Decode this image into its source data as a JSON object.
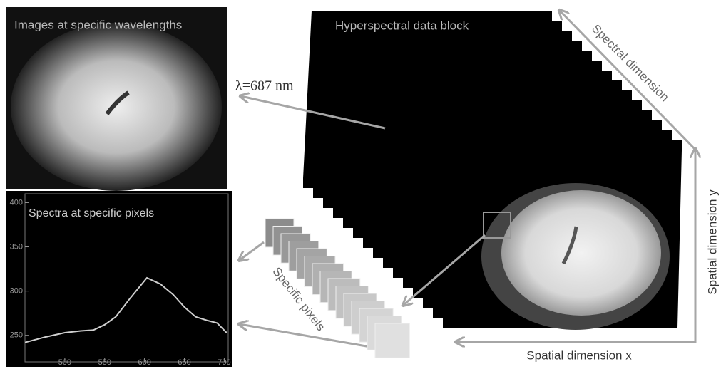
{
  "panels": {
    "image_title": "Images at specific wavelengths",
    "wavelength_label": "λ=687 nm",
    "spectrum_title": "Spectra at specific pixels"
  },
  "data_block": {
    "title": "Hyperspectral data block",
    "spectral_axis": "Spectral dimension",
    "spatial_y_axis": "Spatial dimension y",
    "spatial_x_axis": "Spatial dimension x",
    "pixels_label": "Specific pixels"
  },
  "chart_data": {
    "type": "line",
    "x": [
      450,
      475,
      500,
      520,
      536,
      550,
      564,
      582,
      603,
      620,
      636,
      650,
      664,
      678,
      691,
      703
    ],
    "series": [
      {
        "color": "#cfcfcf",
        "values": [
          242,
          248,
          253,
          255,
          256,
          262,
          271,
          292,
          315,
          308,
          296,
          282,
          271,
          267,
          264,
          253
        ]
      }
    ],
    "xlim": [
      450,
      705
    ],
    "ylim": [
      220,
      410
    ],
    "xticks": [
      500,
      550,
      600,
      650,
      700
    ],
    "yticks": [
      250,
      300,
      350,
      400
    ]
  }
}
